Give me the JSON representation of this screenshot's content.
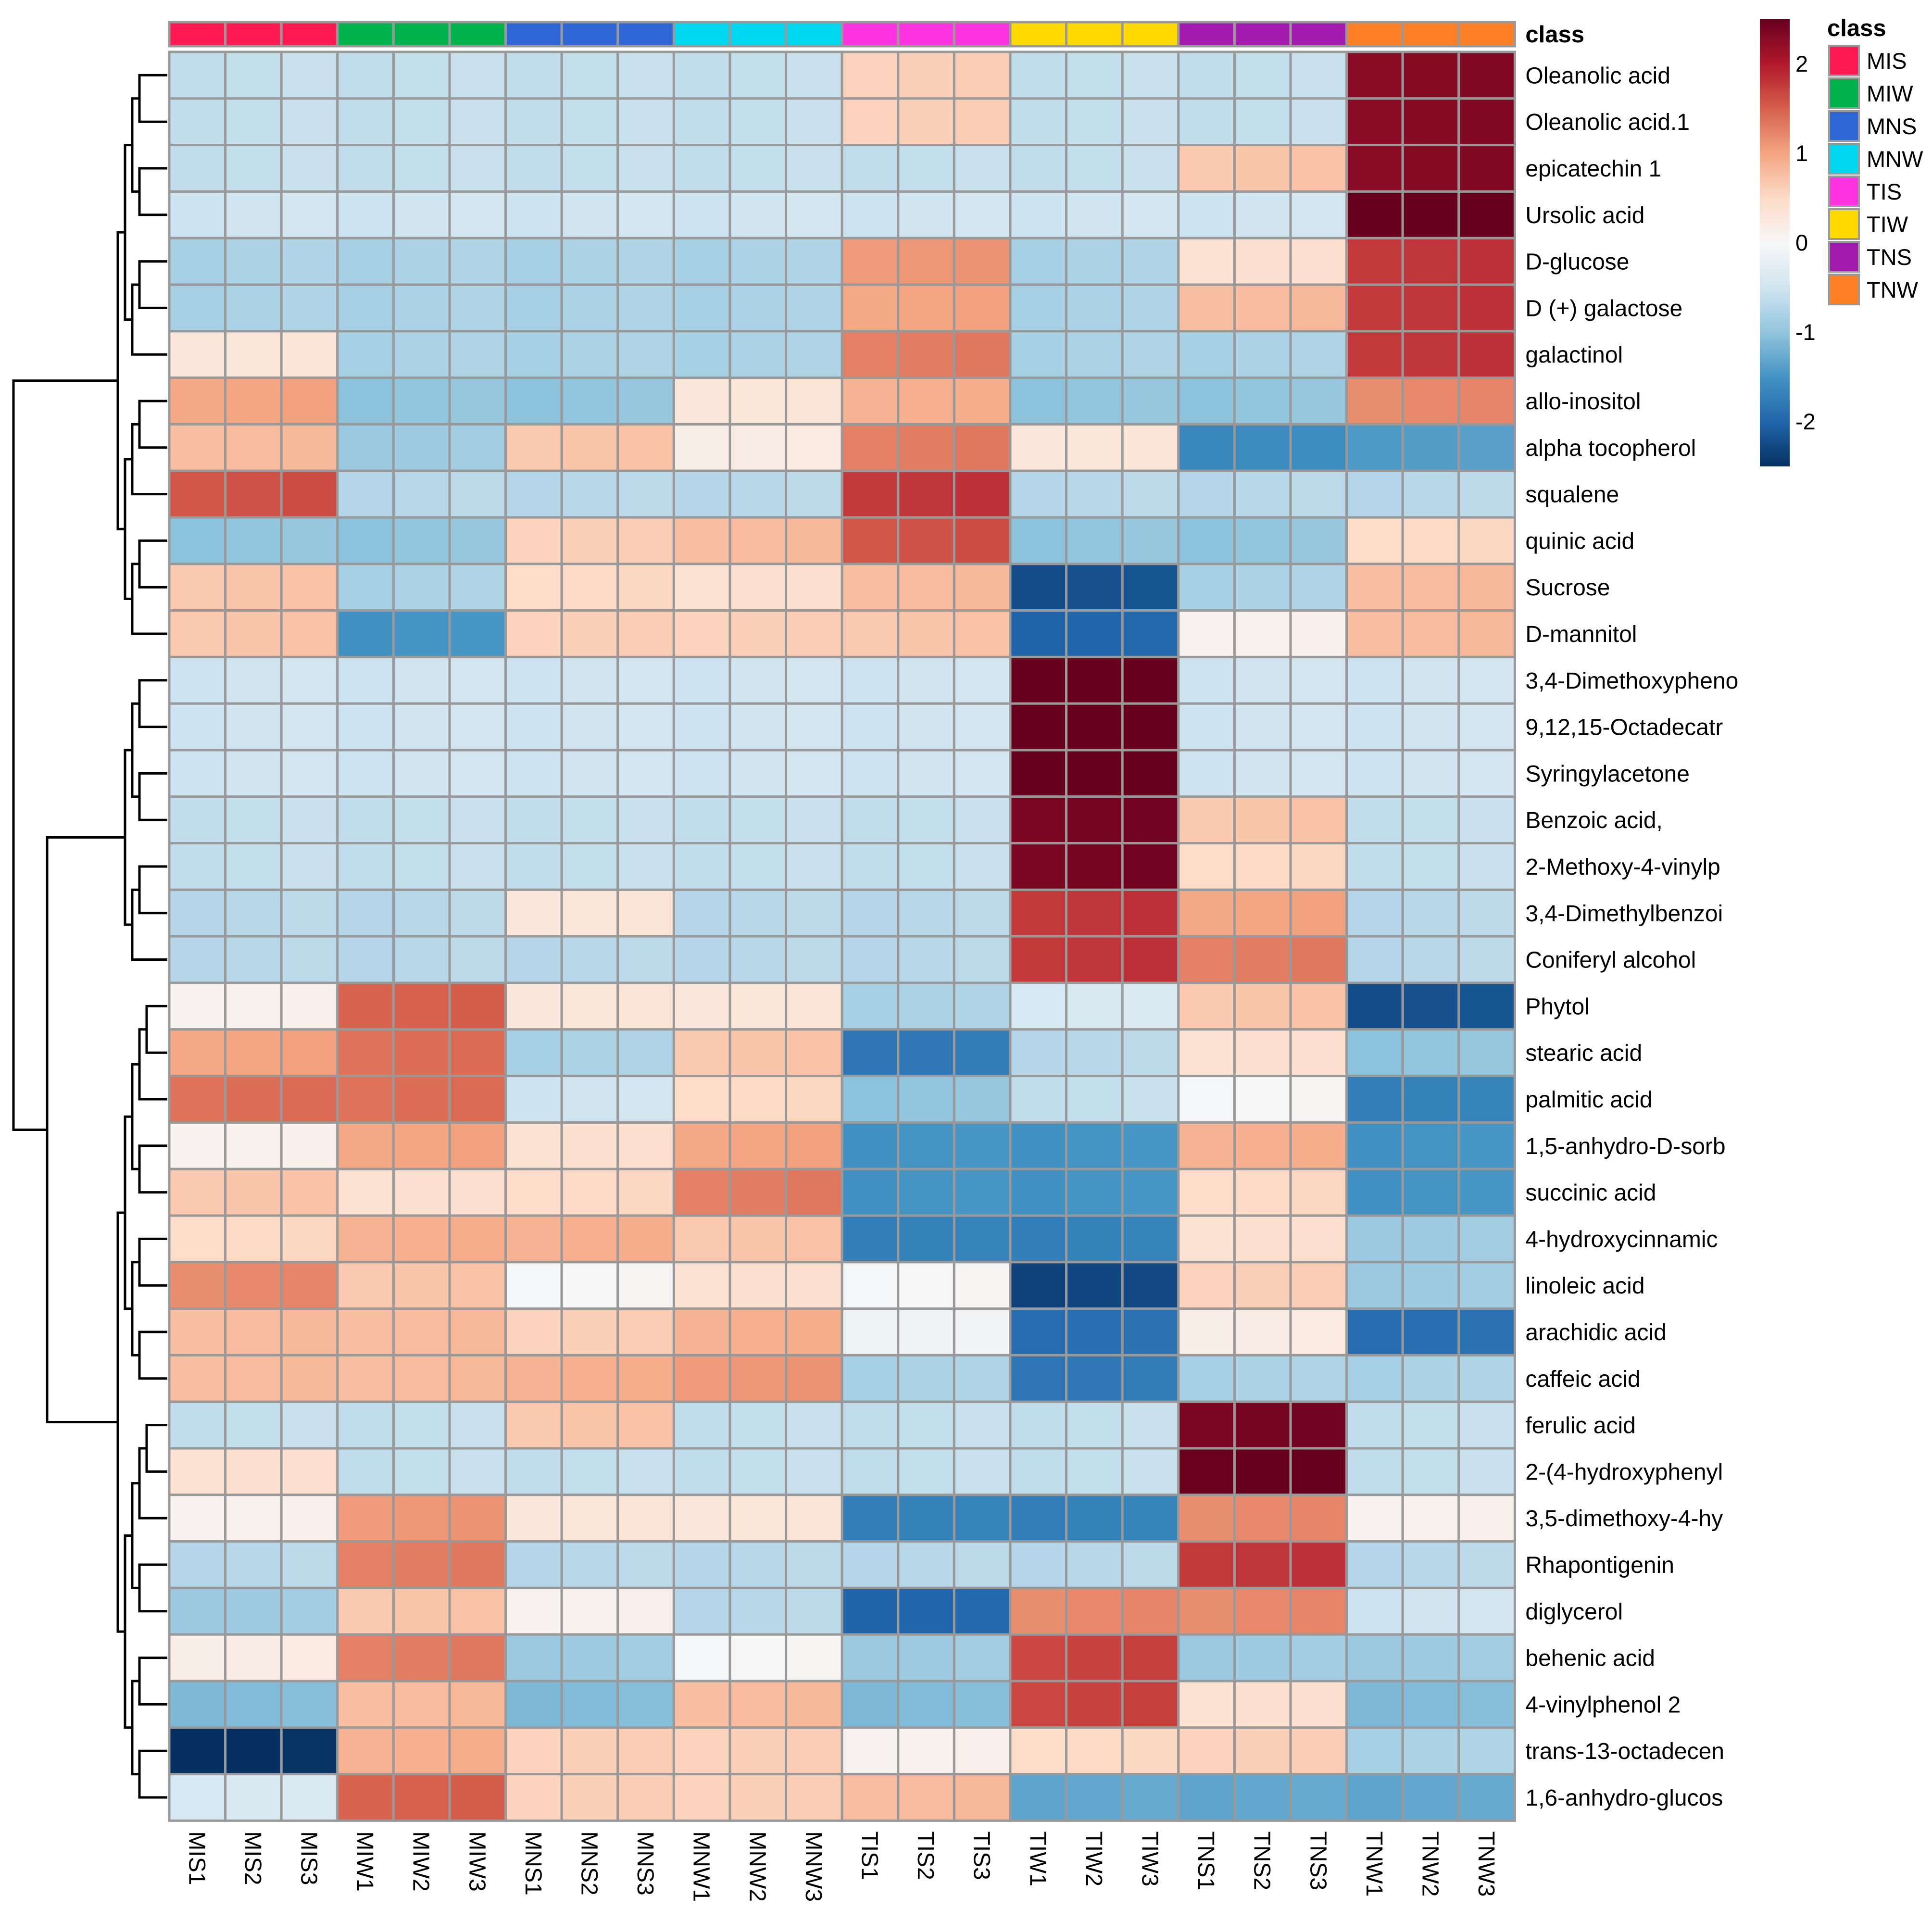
{
  "chart_data": {
    "type": "heatmap",
    "title": "",
    "annotation_title": "class",
    "color_scale": {
      "min": -2.5,
      "max": 2.5,
      "ticks": [
        2,
        1,
        0,
        -1,
        -2
      ],
      "colors": [
        "#053061",
        "#2166ac",
        "#4393c3",
        "#92c5de",
        "#d1e5f0",
        "#f7f7f7",
        "#fddbc7",
        "#f4a582",
        "#d6604d",
        "#b2182b",
        "#67001f"
      ]
    },
    "class_legend": [
      {
        "name": "MIS",
        "color": "#ff1a53"
      },
      {
        "name": "MIW",
        "color": "#00b34d"
      },
      {
        "name": "MNS",
        "color": "#2f66d6"
      },
      {
        "name": "MNW",
        "color": "#00d7f0"
      },
      {
        "name": "TIS",
        "color": "#ff33e0"
      },
      {
        "name": "TIW",
        "color": "#ffd900"
      },
      {
        "name": "TNS",
        "color": "#a31aaf"
      },
      {
        "name": "TNW",
        "color": "#ff7f24"
      }
    ],
    "groups": [
      "MIS",
      "MIW",
      "MNS",
      "MNW",
      "TIS",
      "TIW",
      "TNS",
      "TNW"
    ],
    "columns": [
      "MIS1",
      "MIS2",
      "MIS3",
      "MIW1",
      "MIW2",
      "MIW3",
      "MNS1",
      "MNS2",
      "MNS3",
      "MNW1",
      "MNW2",
      "MNW3",
      "TIS1",
      "TIS2",
      "TIS3",
      "TIW1",
      "TIW2",
      "TIW3",
      "TNS1",
      "TNS2",
      "TNS3",
      "TNW1",
      "TNW2",
      "TNW3"
    ],
    "rows": [
      "Oleanolic acid",
      "Oleanolic acid.1",
      "epicatechin 1",
      "Ursolic acid",
      "D-glucose",
      "D (+) galactose",
      "galactinol",
      "allo-inositol",
      "alpha tocopherol",
      "squalene",
      "quinic acid",
      "Sucrose",
      "D-mannitol",
      "3,4-Dimethoxypheno",
      "9,12,15-Octadecatr",
      "Syringylacetone",
      "Benzoic acid,",
      "2-Methoxy-4-vinylp",
      "3,4-Dimethylbenzoi",
      "Coniferyl alcohol",
      "Phytol",
      "stearic acid",
      "palmitic acid",
      "1,5-anhydro-D-sorb",
      "succinic acid",
      "4-hydroxycinnamic",
      "linoleic acid",
      "arachidic acid",
      "caffeic acid",
      "ferulic acid",
      "2-(4-hydroxyphenyl",
      "3,5-dimethoxy-4-hy",
      "Rhapontigenin",
      "diglycerol",
      "behenic acid",
      "4-vinylphenol 2",
      "trans-13-octadecen",
      "1,6-anhydro-glucos"
    ],
    "group_values": [
      [
        -0.6,
        -0.6,
        -0.6,
        -0.6,
        0.6,
        -0.6,
        -0.6,
        2.3
      ],
      [
        -0.6,
        -0.6,
        -0.6,
        -0.6,
        0.6,
        -0.6,
        -0.6,
        2.3
      ],
      [
        -0.6,
        -0.6,
        -0.6,
        -0.6,
        -0.6,
        -0.6,
        0.7,
        2.3
      ],
      [
        -0.5,
        -0.5,
        -0.5,
        -0.5,
        -0.5,
        -0.5,
        -0.5,
        2.6
      ],
      [
        -0.8,
        -0.8,
        -0.8,
        -0.8,
        1.1,
        -0.8,
        0.4,
        1.8
      ],
      [
        -0.8,
        -0.8,
        -0.8,
        -0.8,
        1.0,
        -0.8,
        0.8,
        1.8
      ],
      [
        0.3,
        -0.8,
        -0.8,
        -0.8,
        1.3,
        -0.8,
        -0.8,
        1.8
      ],
      [
        1.0,
        -1.0,
        -1.0,
        0.3,
        0.9,
        -1.0,
        -1.0,
        1.2
      ],
      [
        0.8,
        -0.9,
        0.7,
        0.2,
        1.3,
        0.3,
        -1.6,
        -1.4
      ],
      [
        1.6,
        -0.7,
        -0.7,
        -0.7,
        1.8,
        -0.7,
        -0.7,
        -0.7
      ],
      [
        -1.0,
        -1.0,
        0.6,
        0.8,
        1.6,
        -1.0,
        -1.0,
        0.5
      ],
      [
        0.7,
        -0.8,
        0.5,
        0.4,
        0.8,
        -2.2,
        -0.8,
        0.8
      ],
      [
        0.7,
        -1.5,
        0.6,
        0.6,
        0.7,
        -2.0,
        0.1,
        0.8
      ],
      [
        -0.5,
        -0.5,
        -0.5,
        -0.5,
        -0.5,
        2.6,
        -0.5,
        -0.5
      ],
      [
        -0.5,
        -0.5,
        -0.5,
        -0.5,
        -0.5,
        2.6,
        -0.5,
        -0.5
      ],
      [
        -0.5,
        -0.5,
        -0.5,
        -0.5,
        -0.5,
        2.6,
        -0.5,
        -0.5
      ],
      [
        -0.6,
        -0.6,
        -0.6,
        -0.6,
        -0.6,
        2.4,
        0.7,
        -0.6
      ],
      [
        -0.6,
        -0.6,
        -0.6,
        -0.6,
        -0.6,
        2.4,
        0.5,
        -0.6
      ],
      [
        -0.7,
        -0.7,
        0.3,
        -0.7,
        -0.7,
        1.8,
        1.0,
        -0.7
      ],
      [
        -0.7,
        -0.7,
        -0.7,
        -0.7,
        -0.7,
        1.8,
        1.3,
        -0.7
      ],
      [
        0.1,
        1.5,
        0.3,
        0.3,
        -0.8,
        -0.4,
        0.7,
        -2.2
      ],
      [
        1.0,
        1.4,
        -0.8,
        0.7,
        -1.8,
        -0.7,
        0.4,
        -1.0
      ],
      [
        1.4,
        1.4,
        -0.5,
        0.5,
        -1.0,
        -0.6,
        0.0,
        -1.7
      ],
      [
        0.1,
        1.0,
        0.4,
        1.0,
        -1.5,
        -1.5,
        0.9,
        -1.5
      ],
      [
        0.7,
        0.4,
        0.5,
        1.3,
        -1.5,
        -1.5,
        0.5,
        -1.5
      ],
      [
        0.5,
        0.9,
        0.9,
        0.7,
        -1.7,
        -1.7,
        0.4,
        -0.9
      ],
      [
        1.2,
        0.7,
        0.0,
        0.4,
        0.0,
        -2.3,
        0.6,
        -0.9
      ],
      [
        0.8,
        0.8,
        0.6,
        0.9,
        -0.1,
        -1.9,
        0.2,
        -1.9
      ],
      [
        0.8,
        0.8,
        0.9,
        1.1,
        -0.8,
        -1.8,
        -0.8,
        -0.8
      ],
      [
        -0.6,
        -0.6,
        0.7,
        -0.6,
        -0.6,
        -0.6,
        2.4,
        -0.6
      ],
      [
        0.4,
        -0.6,
        -0.6,
        -0.6,
        -0.6,
        -0.6,
        2.5,
        -0.6
      ],
      [
        0.1,
        1.1,
        0.3,
        0.3,
        -1.7,
        -1.7,
        1.2,
        0.1
      ],
      [
        -0.7,
        1.3,
        -0.7,
        -0.7,
        -0.7,
        -0.7,
        1.8,
        -0.7
      ],
      [
        -0.9,
        0.7,
        0.1,
        -0.7,
        -2.0,
        1.2,
        1.2,
        -0.5
      ],
      [
        0.2,
        1.3,
        -0.9,
        0.0,
        -0.9,
        1.7,
        -0.9,
        -0.9
      ],
      [
        -1.1,
        0.8,
        -1.1,
        0.8,
        -1.1,
        1.7,
        0.4,
        -1.1
      ],
      [
        -2.5,
        0.9,
        0.6,
        0.6,
        0.1,
        0.5,
        0.6,
        -0.8
      ],
      [
        -0.4,
        1.5,
        0.6,
        0.6,
        0.8,
        -1.3,
        -1.3,
        -1.3
      ]
    ]
  }
}
